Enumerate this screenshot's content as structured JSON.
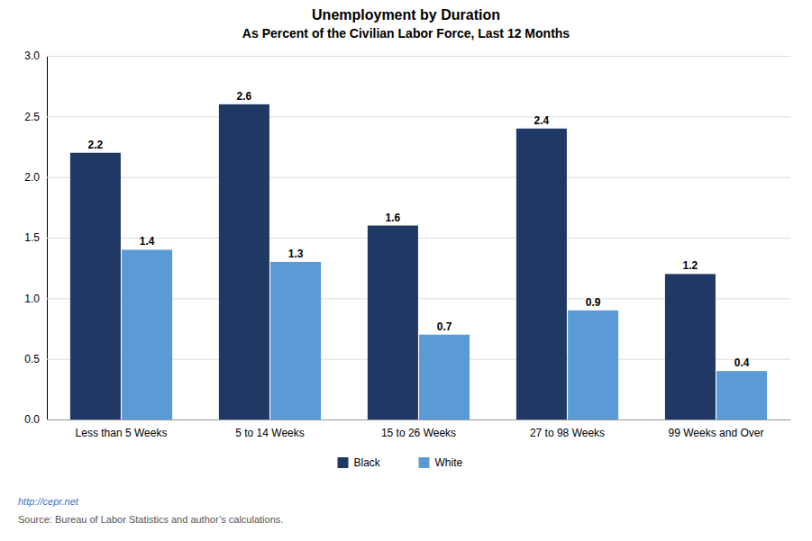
{
  "chart_data": {
    "type": "bar",
    "title": "Unemployment  by Duration",
    "subtitle": "As Percent of the Civilian  Labor Force, Last 12 Months",
    "categories": [
      "Less than 5 Weeks",
      "5 to 14 Weeks",
      "15 to 26 Weeks",
      "27 to 98 Weeks",
      "99 Weeks and Over"
    ],
    "series": [
      {
        "name": "Black",
        "color": "#1F3864",
        "values": [
          2.2,
          2.6,
          1.6,
          2.4,
          1.2
        ]
      },
      {
        "name": "White",
        "color": "#5B9BD5",
        "values": [
          1.4,
          1.3,
          0.7,
          0.9,
          0.4
        ]
      }
    ],
    "ylim": [
      0.0,
      3.0
    ],
    "yticks": [
      {
        "value": 0.0,
        "label": "0.0"
      },
      0.5,
      {
        "value": 1.0,
        "label": "1.0"
      },
      1.5,
      {
        "value": 2.0,
        "label": "2.0"
      },
      2.5,
      {
        "value": 3.0,
        "label": "3.0"
      }
    ],
    "grid": true,
    "data_labels": true,
    "legend": "bottom",
    "annotations": [
      "http://cepr.net",
      "Source: Bureau of Labor Statistics and author’s calculations."
    ]
  }
}
